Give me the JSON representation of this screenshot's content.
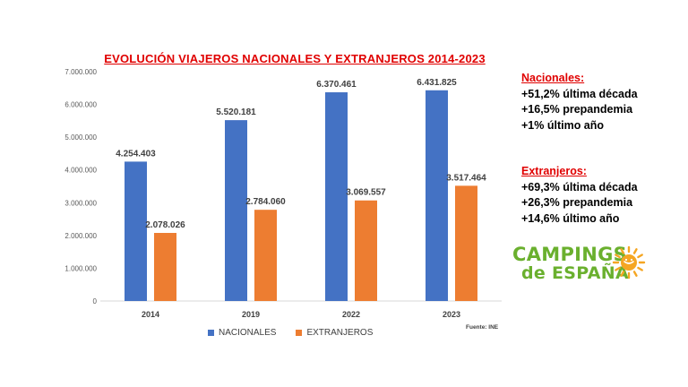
{
  "chart_data": {
    "type": "bar",
    "title": "EVOLUCIÓN VIAJEROS NACIONALES Y EXTRANJEROS 2014-2023",
    "categories": [
      "2014",
      "2019",
      "2022",
      "2023"
    ],
    "series": [
      {
        "name": "NACIONALES",
        "values": [
          4254403,
          5520181,
          6370461,
          6431825
        ],
        "labels": [
          "4.254.403",
          "5.520.181",
          "6.370.461",
          "6.431.825"
        ],
        "color": "#4472c4"
      },
      {
        "name": "EXTRANJEROS",
        "values": [
          2078026,
          2784060,
          3069557,
          3517464
        ],
        "labels": [
          "2.078.026",
          "2.784.060",
          "3.069.557",
          "3.517.464"
        ],
        "color": "#ed7d31"
      }
    ],
    "ylim": [
      0,
      7000000
    ],
    "yticks": [
      0,
      1000000,
      2000000,
      3000000,
      4000000,
      5000000,
      6000000,
      7000000
    ],
    "ytick_labels": [
      "0",
      "1.000.000",
      "2.000.000",
      "3.000.000",
      "4.000.000",
      "5.000.000",
      "6.000.000",
      "7.000.000"
    ],
    "legend_position": "bottom",
    "grid": false
  },
  "source": "Fuente: INE",
  "title_color": "#e00000",
  "panel": {
    "nacionales": {
      "heading": "Nacionales:",
      "lines": [
        "+51,2% última década",
        "+16,5% prepandemia",
        "+1% último año"
      ]
    },
    "extranjeros": {
      "heading": "Extranjeros:",
      "lines": [
        "+69,3% última década",
        "+26,3% prepandemia",
        "+14,6% último año"
      ]
    },
    "heading_color": "#e00000"
  },
  "logo": {
    "line1": "CAMPINGS",
    "line2": "de ESPAÑA",
    "color": "#6ab02e",
    "sun_color": "#f5a623"
  }
}
